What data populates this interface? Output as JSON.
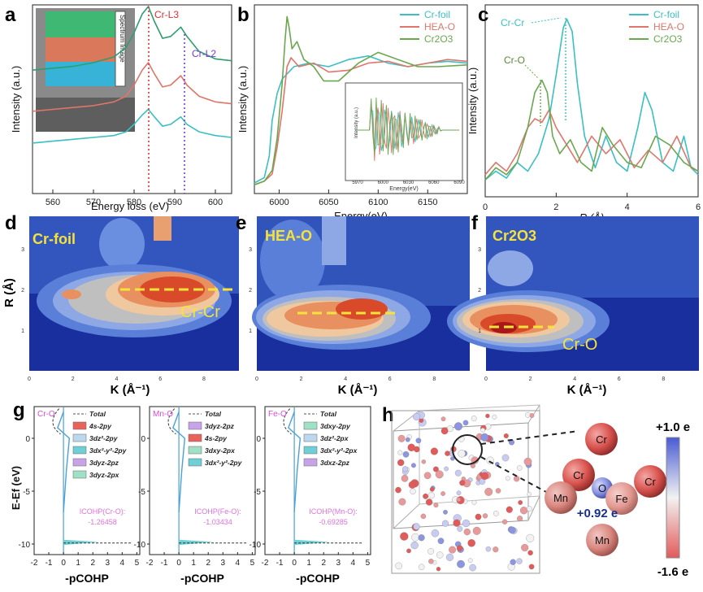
{
  "panel_labels": [
    "a",
    "b",
    "c",
    "d",
    "e",
    "f",
    "g",
    "h"
  ],
  "chart_data": [
    {
      "panel": "a",
      "type": "line",
      "xlabel": "Energy loss (eV)",
      "ylabel": "Intensity (a.u.)",
      "xlim": [
        555,
        604
      ],
      "xticks": [
        "560",
        "570",
        "580",
        "590",
        "600"
      ],
      "annotations": [
        "Cr-L3",
        "Cr-L2"
      ],
      "inset_label": "Spectrum Image",
      "series": [
        {
          "color": "#2e9e6f",
          "x": [
            555,
            560,
            565,
            570,
            575,
            578,
            580,
            582,
            583.5,
            585,
            587,
            589,
            591.5,
            593,
            596,
            600,
            604
          ],
          "y": [
            0.66,
            0.67,
            0.68,
            0.7,
            0.73,
            0.78,
            0.86,
            0.96,
            1.0,
            0.92,
            0.83,
            0.84,
            0.89,
            0.84,
            0.76,
            0.72,
            0.71
          ]
        },
        {
          "color": "#e0756b",
          "x": [
            555,
            560,
            565,
            570,
            575,
            578,
            580,
            582,
            583.5,
            585,
            587,
            589,
            591.5,
            593,
            596,
            600,
            604
          ],
          "y": [
            0.44,
            0.45,
            0.46,
            0.47,
            0.49,
            0.52,
            0.58,
            0.66,
            0.7,
            0.64,
            0.57,
            0.58,
            0.63,
            0.58,
            0.52,
            0.49,
            0.48
          ]
        },
        {
          "color": "#3bbfc4",
          "x": [
            555,
            560,
            565,
            570,
            575,
            578,
            580,
            582,
            583.5,
            585,
            587,
            589,
            591.5,
            593,
            596,
            600,
            604
          ],
          "y": [
            0.27,
            0.28,
            0.29,
            0.3,
            0.31,
            0.33,
            0.37,
            0.42,
            0.45,
            0.41,
            0.36,
            0.37,
            0.41,
            0.37,
            0.33,
            0.31,
            0.3
          ]
        }
      ]
    },
    {
      "panel": "b",
      "type": "line",
      "xlabel": "Energy(eV)",
      "ylabel": "Intensity (a.u.)",
      "xlim": [
        5975,
        6190
      ],
      "xticks": [
        "6000",
        "6050",
        "6100",
        "6150"
      ],
      "legend": [
        "Cr-foil",
        "HEA-O",
        "Cr2O3"
      ],
      "inset": {
        "xlabel": "Energy(eV)",
        "ylabel": "Intensity (a.u.)",
        "xticks": [
          "5970",
          "6000",
          "6030",
          "6060",
          "6090"
        ]
      },
      "series": [
        {
          "name": "Cr-foil",
          "color": "#3bbfc4",
          "x": [
            5975,
            5985,
            5990,
            5993,
            5998,
            6003,
            6008,
            6015,
            6030,
            6050,
            6070,
            6090,
            6110,
            6130,
            6150,
            6170,
            6190
          ],
          "y": [
            0.05,
            0.08,
            0.2,
            0.4,
            0.55,
            0.63,
            0.66,
            0.7,
            0.72,
            0.7,
            0.74,
            0.76,
            0.72,
            0.7,
            0.72,
            0.73,
            0.72
          ]
        },
        {
          "name": "HEA-O",
          "color": "#e0756b",
          "x": [
            5975,
            5985,
            5993,
            5998,
            6003,
            6008,
            6012,
            6020,
            6035,
            6050,
            6070,
            6090,
            6110,
            6130,
            6150,
            6170,
            6190
          ],
          "y": [
            0.04,
            0.06,
            0.1,
            0.25,
            0.45,
            0.7,
            0.75,
            0.7,
            0.72,
            0.67,
            0.68,
            0.72,
            0.73,
            0.7,
            0.72,
            0.74,
            0.73
          ]
        },
        {
          "name": "Cr2O3",
          "color": "#6aa84f",
          "x": [
            5975,
            5985,
            5993,
            5998,
            6003,
            6006,
            6008,
            6010,
            6013,
            6018,
            6025,
            6035,
            6045,
            6060,
            6080,
            6100,
            6120,
            6140,
            6160,
            6190
          ],
          "y": [
            0.04,
            0.06,
            0.12,
            0.3,
            0.6,
            0.85,
            0.98,
            0.92,
            0.8,
            0.84,
            0.74,
            0.7,
            0.62,
            0.62,
            0.72,
            0.78,
            0.74,
            0.7,
            0.7,
            0.71
          ]
        }
      ]
    },
    {
      "panel": "c",
      "type": "line",
      "xlabel": "R (Å)",
      "ylabel": "Intensity (a.u.)",
      "xlim": [
        0,
        6
      ],
      "xticks": [
        "0",
        "2",
        "4",
        "6"
      ],
      "legend": [
        "Cr-foil",
        "HEA-O",
        "Cr2O3"
      ],
      "annotations": [
        "Cr-Cr",
        "Cr-O"
      ],
      "series": [
        {
          "name": "Cr-foil",
          "color": "#3bbfc4",
          "x": [
            0,
            0.3,
            0.6,
            0.9,
            1.2,
            1.5,
            1.8,
            2.0,
            2.2,
            2.3,
            2.45,
            2.6,
            2.8,
            3.1,
            3.4,
            3.7,
            4.0,
            4.3,
            4.5,
            4.7,
            5.0,
            5.3,
            5.6,
            5.8,
            6.0
          ],
          "y": [
            0.05,
            0.1,
            0.06,
            0.15,
            0.1,
            0.2,
            0.4,
            0.65,
            0.92,
            0.97,
            0.9,
            0.6,
            0.3,
            0.12,
            0.3,
            0.15,
            0.1,
            0.35,
            0.55,
            0.45,
            0.15,
            0.1,
            0.3,
            0.12,
            0.08
          ]
        },
        {
          "name": "HEA-O",
          "color": "#e0756b",
          "x": [
            0,
            0.3,
            0.6,
            0.9,
            1.2,
            1.4,
            1.6,
            1.8,
            2.0,
            2.3,
            2.6,
            3.0,
            3.4,
            3.8,
            4.2,
            4.6,
            5.0,
            5.4,
            5.8,
            6.0
          ],
          "y": [
            0.08,
            0.15,
            0.1,
            0.2,
            0.35,
            0.4,
            0.38,
            0.45,
            0.35,
            0.25,
            0.15,
            0.3,
            0.2,
            0.28,
            0.12,
            0.22,
            0.15,
            0.3,
            0.12,
            0.1
          ]
        },
        {
          "name": "Cr2O3",
          "color": "#6aa84f",
          "x": [
            0,
            0.3,
            0.6,
            0.9,
            1.2,
            1.4,
            1.6,
            1.75,
            1.9,
            2.1,
            2.4,
            2.7,
            3.0,
            3.3,
            3.6,
            4.0,
            4.4,
            4.8,
            5.2,
            5.6,
            6.0
          ],
          "y": [
            0.05,
            0.12,
            0.08,
            0.15,
            0.35,
            0.55,
            0.62,
            0.55,
            0.3,
            0.2,
            0.28,
            0.15,
            0.1,
            0.35,
            0.25,
            0.15,
            0.12,
            0.3,
            0.25,
            0.15,
            0.1
          ]
        }
      ]
    },
    {
      "panel": "d",
      "type": "heatmap",
      "title": "Cr-foil",
      "xlabel": "K (Å⁻¹)",
      "ylabel": "R (Å)",
      "xticks": [
        "0",
        "2",
        "4",
        "6",
        "8"
      ],
      "yticks": [
        "1",
        "2",
        "3"
      ],
      "annotation": "Cr-Cr"
    },
    {
      "panel": "e",
      "type": "heatmap",
      "title": "HEA-O",
      "xlabel": "K (Å⁻¹)",
      "xticks": [
        "0",
        "2",
        "4",
        "6",
        "8"
      ],
      "yticks": [
        "1",
        "2",
        "3"
      ]
    },
    {
      "panel": "f",
      "type": "heatmap",
      "title": "Cr2O3",
      "xlabel": "K (Å⁻¹)",
      "xticks": [
        "0",
        "2",
        "4",
        "6",
        "8"
      ],
      "yticks": [
        "1",
        "2",
        "3"
      ],
      "annotation": "Cr-O"
    },
    {
      "panel": "g",
      "type": "line",
      "ylabel": "E-Ef (eV)",
      "xlabel": "-pCOHP",
      "xticks": [
        "-2",
        "-1",
        "0",
        "1",
        "2",
        "3",
        "4",
        "5"
      ],
      "yticks": [
        "0",
        "-5",
        "-10"
      ],
      "subplots": [
        {
          "tag": "Cr-O",
          "legend": [
            "Total",
            "4s-2py",
            "3dz²-2py",
            "3dx²-y²-2py",
            "3dyz-2pz",
            "3dyz-2px"
          ],
          "legend_colors": [
            "#555555",
            "#e8645a",
            "#bcd8ee",
            "#6ed0d6",
            "#c9a3e8",
            "#9fe0c6"
          ],
          "icohp_label": "ICOHP(Cr-O):",
          "icohp_value": "-1.26458"
        },
        {
          "tag": "Mn-O",
          "legend": [
            "Total",
            "3dyz-2pz",
            "4s-2py",
            "3dxy-2px",
            "3dx²-y²-2py"
          ],
          "legend_colors": [
            "#555555",
            "#c9a3e8",
            "#e8645a",
            "#9fe0c6",
            "#6ed0d6"
          ],
          "icohp_label": "ICOHP(Fe-O):",
          "icohp_value": "-1.03434"
        },
        {
          "tag": "Fe-O",
          "legend": [
            "Total",
            "3dxy-2py",
            "3dz²-2px",
            "3dx²-y²-2px",
            "3dxz-2pz"
          ],
          "legend_colors": [
            "#555555",
            "#9fe0c6",
            "#bcd8ee",
            "#6ed0d6",
            "#c9a3e8"
          ],
          "icohp_label": "ICOHP(Mn-O):",
          "icohp_value": "-0.69285"
        }
      ]
    },
    {
      "panel": "h",
      "type": "other",
      "colorbar": {
        "max_label": "+1.0 e",
        "min_label": "-1.6 e",
        "colors": [
          "#4a5bd4",
          "#f2f2f2",
          "#e25a5a"
        ]
      },
      "atoms": [
        "Cr",
        "Cr",
        "Mn",
        "O",
        "Fe",
        "Cr",
        "Mn"
      ],
      "charge_label": "+0.92 e"
    }
  ]
}
